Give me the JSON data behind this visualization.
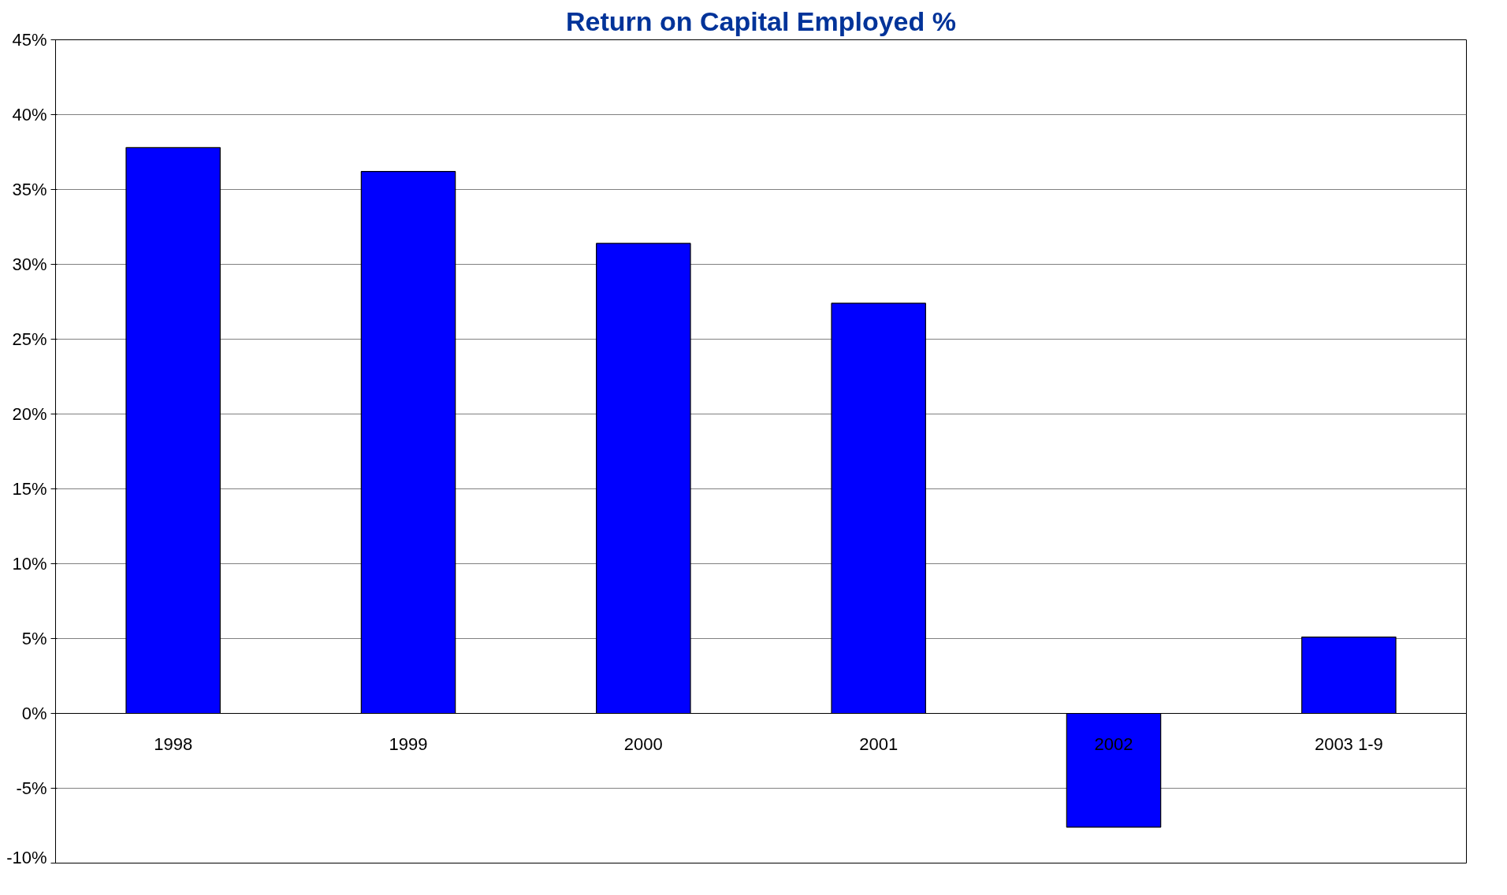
{
  "chart_data": {
    "type": "bar",
    "title": "Return on Capital Employed %",
    "categories": [
      "1998",
      "1999",
      "2000",
      "2001",
      "2002",
      "2003 1-9"
    ],
    "values": [
      37.8,
      36.2,
      31.4,
      27.4,
      -7.6,
      5.1
    ],
    "color": "#0000ff",
    "ylim": [
      -10,
      45
    ],
    "yticks": [
      {
        "value": -10,
        "label": "-10%"
      },
      {
        "value": -5,
        "label": "-5%"
      },
      {
        "value": 0,
        "label": "0%"
      },
      {
        "value": 5,
        "label": "5%"
      },
      {
        "value": 10,
        "label": "10%"
      },
      {
        "value": 15,
        "label": "15%"
      },
      {
        "value": 20,
        "label": "20%"
      },
      {
        "value": 25,
        "label": "25%"
      },
      {
        "value": 30,
        "label": "30%"
      },
      {
        "value": 35,
        "label": "35%"
      },
      {
        "value": 40,
        "label": "40%"
      },
      {
        "value": 45,
        "label": "45%"
      }
    ],
    "grid": "y"
  }
}
